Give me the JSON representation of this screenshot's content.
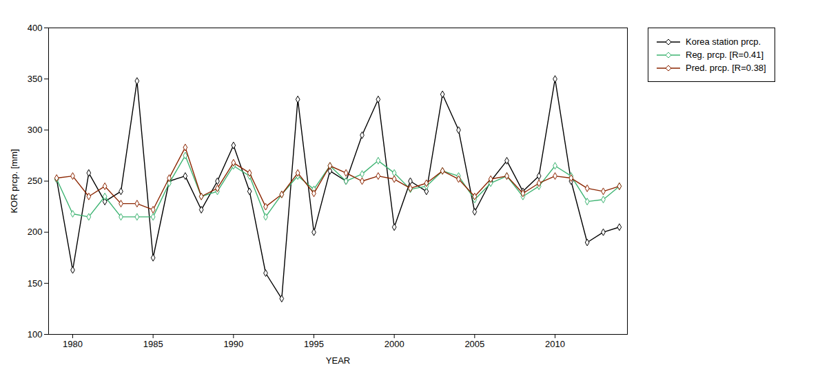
{
  "chart_data": {
    "type": "line",
    "xlabel": "YEAR",
    "ylabel": "KOR prcp. [mm]",
    "x": [
      1979,
      1980,
      1981,
      1982,
      1983,
      1984,
      1985,
      1986,
      1987,
      1988,
      1989,
      1990,
      1991,
      1992,
      1993,
      1994,
      1995,
      1996,
      1997,
      1998,
      1999,
      2000,
      2001,
      2002,
      2003,
      2004,
      2005,
      2006,
      2007,
      2008,
      2009,
      2010,
      2011,
      2012,
      2013,
      2014
    ],
    "series": [
      {
        "name": "Korea station prcp.",
        "color": "#000000",
        "values": [
          252,
          163,
          258,
          230,
          240,
          348,
          175,
          250,
          255,
          222,
          250,
          285,
          240,
          160,
          135,
          330,
          200,
          260,
          250,
          295,
          330,
          205,
          250,
          240,
          335,
          300,
          220,
          250,
          270,
          240,
          255,
          350,
          250,
          190,
          200,
          205
        ]
      },
      {
        "name": "Reg. prcp. [R=0.41]",
        "color": "#3cb371",
        "values": [
          252,
          218,
          215,
          235,
          215,
          215,
          215,
          248,
          275,
          235,
          240,
          265,
          255,
          215,
          237,
          255,
          242,
          265,
          250,
          257,
          270,
          258,
          242,
          245,
          260,
          255,
          232,
          248,
          255,
          235,
          245,
          265,
          255,
          230,
          232,
          245
        ]
      },
      {
        "name": "Pred. prcp. [R=0.38]",
        "color": "#8b2500",
        "values": [
          253,
          255,
          235,
          245,
          228,
          228,
          222,
          253,
          283,
          235,
          243,
          268,
          258,
          225,
          237,
          258,
          238,
          265,
          258,
          250,
          255,
          252,
          243,
          248,
          260,
          252,
          235,
          252,
          255,
          238,
          248,
          255,
          253,
          243,
          240,
          245
        ]
      }
    ],
    "xlim": [
      1978.5,
      2014.5
    ],
    "xticks": [
      1980,
      1985,
      1990,
      1995,
      2000,
      2005,
      2010
    ],
    "ylim": [
      100,
      400
    ],
    "yticks": [
      100,
      150,
      200,
      250,
      300,
      350,
      400
    ],
    "marker": "diamond",
    "line_style": "solid",
    "grid": false,
    "legend": "right"
  }
}
